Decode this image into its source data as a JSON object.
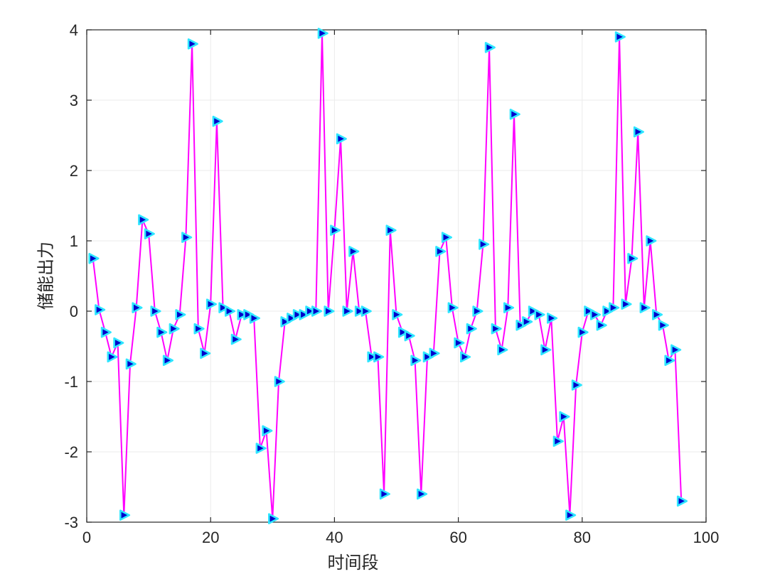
{
  "figure": {
    "background": "#ffffff",
    "axis_color": "#262626",
    "grid_color": "#ebebeb"
  },
  "chart_data": {
    "type": "line",
    "title": "",
    "xlabel": "时间段",
    "ylabel": "储能出力",
    "xlim": [
      0,
      100
    ],
    "ylim": [
      -3,
      4
    ],
    "x_ticks": [
      0,
      20,
      40,
      60,
      80,
      100
    ],
    "y_ticks": [
      -3,
      -2,
      -1,
      0,
      1,
      2,
      3,
      4
    ],
    "grid": true,
    "legend_position": "none",
    "x_start": 1,
    "x_step": 1,
    "series": [
      {
        "name": "储能出力",
        "line_color": "#ff00ff",
        "line_width": 2,
        "marker": "triangle-right",
        "marker_face": "#0000cc",
        "marker_edge": "#2ee6ff",
        "values": [
          0.75,
          0.02,
          -0.3,
          -0.65,
          -0.45,
          -2.9,
          -0.75,
          0.05,
          1.3,
          1.1,
          0.0,
          -0.3,
          -0.7,
          -0.25,
          -0.05,
          1.05,
          3.8,
          -0.25,
          -0.6,
          0.1,
          2.7,
          0.05,
          0.0,
          -0.4,
          -0.05,
          -0.05,
          -0.1,
          -1.95,
          -1.7,
          -2.95,
          -1.0,
          -0.15,
          -0.1,
          -0.05,
          -0.05,
          0.0,
          0.0,
          3.95,
          0.0,
          1.15,
          2.45,
          0.0,
          0.85,
          0.0,
          0.0,
          -0.65,
          -0.65,
          -2.6,
          1.15,
          -0.05,
          -0.3,
          -0.35,
          -0.7,
          -2.6,
          -0.65,
          -0.6,
          0.85,
          1.05,
          0.05,
          -0.45,
          -0.65,
          -0.25,
          0.0,
          0.95,
          3.75,
          -0.25,
          -0.55,
          0.05,
          2.8,
          -0.2,
          -0.15,
          0.0,
          -0.05,
          -0.55,
          -0.1,
          -1.85,
          -1.5,
          -2.9,
          -1.05,
          -0.3,
          0.0,
          -0.05,
          -0.2,
          0.0,
          0.05,
          3.9,
          0.1,
          0.75,
          2.55,
          0.05,
          1.0,
          -0.05,
          -0.2,
          -0.7,
          -0.55,
          -2.7
        ]
      }
    ]
  }
}
